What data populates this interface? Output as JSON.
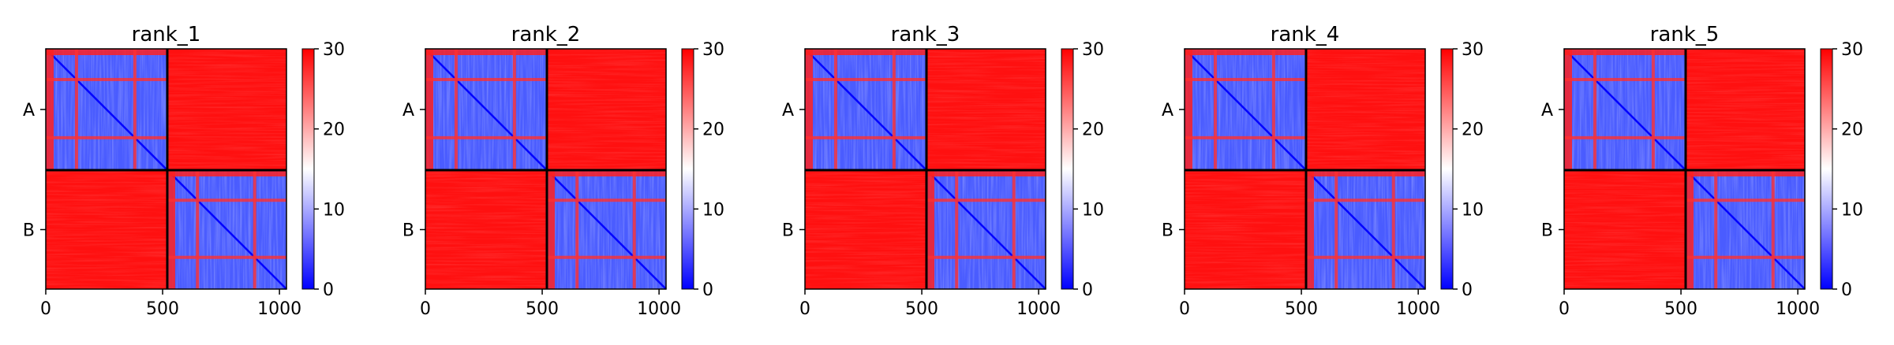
{
  "chart_data": {
    "type": "heatmap",
    "panels": [
      {
        "title": "rank_1"
      },
      {
        "title": "rank_2"
      },
      {
        "title": "rank_3"
      },
      {
        "title": "rank_4"
      },
      {
        "title": "rank_5"
      }
    ],
    "chains": [
      {
        "name": "A",
        "start": 0,
        "end": 520
      },
      {
        "name": "B",
        "start": 520,
        "end": 1030
      }
    ],
    "xlim": [
      0,
      1030
    ],
    "xticks": [
      0,
      500,
      1000
    ],
    "colorbar": {
      "range": [
        0,
        30
      ],
      "ticks": [
        0,
        10,
        20,
        30
      ],
      "colormap": "bwr",
      "colors": {
        "low": "#0000ff",
        "mid": "#ffffff",
        "high": "#ff0000"
      }
    },
    "xlabel": "",
    "ylabel": ""
  }
}
